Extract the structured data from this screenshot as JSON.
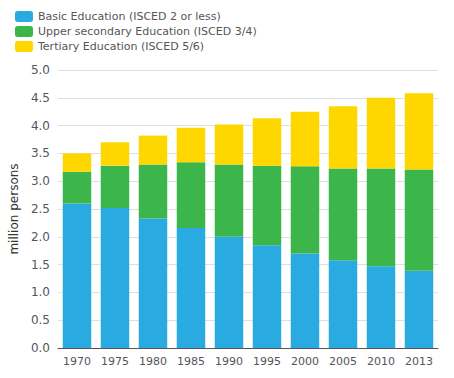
{
  "chart_data": {
    "type": "bar",
    "stacked": true,
    "categories": [
      "1970",
      "1975",
      "1980",
      "1985",
      "1990",
      "1995",
      "2000",
      "2005",
      "2010",
      "2013"
    ],
    "series": [
      {
        "name": "Basic Education (ISCED 2 or less)",
        "color": "#29ABE2",
        "values": [
          2.6,
          2.52,
          2.33,
          2.16,
          2.0,
          1.85,
          1.7,
          1.58,
          1.47,
          1.39
        ]
      },
      {
        "name": "Upper secondary Education (ISCED 3/4)",
        "color": "#3CB54A",
        "values": [
          0.57,
          0.76,
          0.97,
          1.18,
          1.3,
          1.43,
          1.57,
          1.65,
          1.76,
          1.82
        ]
      },
      {
        "name": "Tertiary Education (ISCED 5/6)",
        "color": "#FFD700",
        "values": [
          0.33,
          0.42,
          0.52,
          0.62,
          0.72,
          0.85,
          0.98,
          1.12,
          1.27,
          1.37
        ]
      }
    ],
    "ylabel": "million persons",
    "ylim": [
      0.0,
      5.0
    ],
    "yticks": [
      {
        "value": 0,
        "label": "0.0"
      },
      0.5,
      {
        "value": 1,
        "label": "1.0"
      },
      1.5,
      {
        "value": 2,
        "label": "2.0"
      },
      2.5,
      {
        "value": 3,
        "label": "3.0"
      },
      3.5,
      {
        "value": 4,
        "label": "4.0"
      },
      4.5,
      {
        "value": 5,
        "label": "5.0"
      }
    ],
    "grid": true,
    "legend": "upper left"
  }
}
